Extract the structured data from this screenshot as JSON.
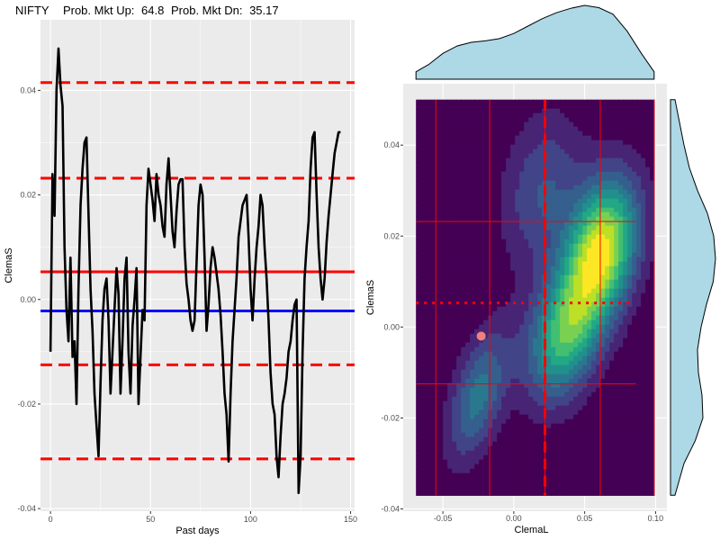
{
  "header": {
    "name": "NIFTY",
    "up_label": "Prob. Mkt Up:",
    "up_value": "64.8",
    "dn_label": "Prob. Mkt Dn:",
    "dn_value": "35.17"
  },
  "colors": {
    "panel_bg": "#ebebeb",
    "grid": "#ffffff",
    "series": "#000000",
    "red": "#ff0000",
    "blue": "#0000ff",
    "marginal_fill": "#add8e6",
    "current_point": "#f08080",
    "density_palette": [
      "#440154",
      "#482475",
      "#414487",
      "#355f8d",
      "#2a788e",
      "#21908d",
      "#22a884",
      "#43bf71",
      "#7ad151",
      "#bddf26",
      "#fde725"
    ]
  },
  "chart_data": [
    {
      "type": "line",
      "panel": "left",
      "title": "",
      "xlabel": "Past days",
      "ylabel": "ClemaS",
      "xlim": [
        -5,
        152
      ],
      "ylim": [
        -0.0405,
        0.0535
      ],
      "x_ticks": [
        0,
        50,
        100,
        150
      ],
      "x_tick_labels": [
        "0",
        "50",
        "100",
        "150"
      ],
      "y_ticks": [
        -0.04,
        -0.02,
        0.0,
        0.02,
        0.04
      ],
      "y_tick_labels": [
        "-0.04",
        "-0.02",
        "0.00",
        "0.02",
        "0.04"
      ],
      "grid": true,
      "x": [
        0,
        1,
        2,
        3,
        4,
        5,
        6,
        7,
        8,
        9,
        10,
        11,
        12,
        13,
        14,
        15,
        16,
        17,
        18,
        19,
        20,
        21,
        22,
        23,
        24,
        25,
        26,
        27,
        28,
        29,
        30,
        31,
        32,
        33,
        34,
        35,
        36,
        37,
        38,
        39,
        40,
        41,
        42,
        43,
        44,
        45,
        46,
        47,
        48,
        49,
        50,
        51,
        52,
        53,
        54,
        55,
        56,
        57,
        58,
        59,
        60,
        61,
        62,
        63,
        64,
        65,
        66,
        67,
        68,
        69,
        70,
        71,
        72,
        73,
        74,
        75,
        76,
        77,
        78,
        79,
        80,
        81,
        82,
        83,
        84,
        85,
        86,
        87,
        88,
        89,
        90,
        91,
        92,
        93,
        94,
        95,
        96,
        97,
        98,
        99,
        100,
        101,
        102,
        103,
        104,
        105,
        106,
        107,
        108,
        109,
        110,
        111,
        112,
        113,
        114,
        115,
        116,
        117,
        118,
        119,
        120,
        121,
        122,
        123,
        124,
        125,
        126,
        127,
        128,
        129,
        130,
        131,
        132,
        133,
        134,
        135,
        136,
        137,
        138,
        139,
        140,
        141,
        142,
        143,
        144,
        145
      ],
      "values": [
        -0.01,
        0.024,
        0.016,
        0.04,
        0.048,
        0.041,
        0.037,
        0.01,
        -0.002,
        -0.008,
        0.008,
        -0.011,
        -0.008,
        -0.02,
        0.002,
        0.018,
        0.025,
        0.03,
        0.031,
        0.016,
        0.002,
        -0.006,
        -0.018,
        -0.024,
        -0.03,
        -0.016,
        -0.004,
        0.002,
        0.004,
        -0.004,
        -0.018,
        -0.01,
        -0.002,
        0.006,
        0.001,
        -0.018,
        -0.008,
        0.004,
        0.008,
        -0.01,
        -0.018,
        -0.005,
        0.0,
        0.006,
        -0.02,
        -0.011,
        -0.002,
        -0.004,
        0.018,
        0.025,
        0.022,
        0.019,
        0.015,
        0.024,
        0.02,
        0.018,
        0.014,
        0.012,
        0.022,
        0.027,
        0.02,
        0.013,
        0.01,
        0.017,
        0.022,
        0.023,
        0.023,
        0.01,
        0.003,
        0.0,
        -0.004,
        -0.006,
        -0.004,
        0.007,
        0.018,
        0.022,
        0.02,
        0.008,
        -0.006,
        -0.001,
        0.006,
        0.01,
        0.008,
        0.005,
        0.002,
        -0.003,
        -0.01,
        -0.018,
        -0.022,
        -0.031,
        -0.018,
        -0.008,
        -0.002,
        0.004,
        0.012,
        0.015,
        0.018,
        0.019,
        0.02,
        0.012,
        0.002,
        -0.004,
        0.004,
        0.01,
        0.014,
        0.02,
        0.018,
        0.01,
        0.004,
        -0.004,
        -0.014,
        -0.02,
        -0.022,
        -0.03,
        -0.034,
        -0.026,
        -0.02,
        -0.018,
        -0.015,
        -0.01,
        -0.008,
        -0.004,
        -0.001,
        0.0,
        -0.037,
        -0.03,
        -0.01,
        0.004,
        0.01,
        0.015,
        0.025,
        0.031,
        0.032,
        0.02,
        0.01,
        0.004,
        0.0,
        0.004,
        0.011,
        0.016,
        0.02,
        0.024,
        0.028,
        0.03,
        0.032,
        0.032
      ],
      "hlines": [
        {
          "y": 0.0415,
          "style": "dashed",
          "color": "red"
        },
        {
          "y": 0.0232,
          "style": "dashed",
          "color": "red"
        },
        {
          "y": 0.0053,
          "style": "solid",
          "color": "red"
        },
        {
          "y": -0.0022,
          "style": "solid",
          "color": "blue"
        },
        {
          "y": -0.0125,
          "style": "dashed",
          "color": "red"
        },
        {
          "y": -0.0305,
          "style": "dashed",
          "color": "red"
        }
      ]
    },
    {
      "type": "heatmap",
      "subtype": "2d-density-contour-with-marginals",
      "panel": "right",
      "xlabel": "ClemaL",
      "ylabel": "ClemaS",
      "xlim": [
        -0.078,
        0.108
      ],
      "ylim": [
        -0.0405,
        0.0535
      ],
      "x_ticks": [
        -0.05,
        0.0,
        0.05,
        0.1
      ],
      "x_tick_labels": [
        "-0.05",
        "0.00",
        "0.05",
        "0.10"
      ],
      "y_ticks": [
        -0.04,
        -0.02,
        0.0,
        0.02,
        0.04
      ],
      "y_tick_labels": [
        "-0.04",
        "-0.02",
        "0.00",
        "0.02",
        "0.04"
      ],
      "density_extent": {
        "x": [
          -0.069,
          0.099
        ],
        "y": [
          -0.037,
          0.05
        ]
      },
      "density_modes": [
        {
          "x": 0.062,
          "y": 0.017,
          "weight": 1.0,
          "sx": 0.018,
          "sy": 0.011,
          "rho": 0.3
        },
        {
          "x": 0.035,
          "y": -0.002,
          "weight": 0.7,
          "sx": 0.018,
          "sy": 0.01,
          "rho": 0.3
        },
        {
          "x": -0.025,
          "y": -0.015,
          "weight": 0.45,
          "sx": 0.015,
          "sy": 0.01,
          "rho": 0.5
        },
        {
          "x": 0.02,
          "y": 0.03,
          "weight": 0.3,
          "sx": 0.02,
          "sy": 0.012,
          "rho": 0.2
        }
      ],
      "vlines": [
        {
          "x": -0.055,
          "style": "solid"
        },
        {
          "x": -0.017,
          "style": "solid"
        },
        {
          "x": 0.022,
          "style": "solid"
        },
        {
          "x": 0.022,
          "style": "dashed"
        },
        {
          "x": 0.061,
          "style": "solid"
        },
        {
          "x": 0.099,
          "style": "solid"
        }
      ],
      "hlines": [
        {
          "y": 0.0232,
          "style": "solid"
        },
        {
          "y": 0.0053,
          "style": "dotted"
        },
        {
          "y": -0.0125,
          "style": "solid"
        }
      ],
      "current_point": {
        "x": -0.023,
        "y": -0.002
      },
      "marginal_x": {
        "x": [
          -0.069,
          -0.06,
          -0.05,
          -0.04,
          -0.03,
          -0.02,
          -0.01,
          0.0,
          0.01,
          0.02,
          0.03,
          0.04,
          0.05,
          0.06,
          0.07,
          0.08,
          0.09,
          0.099
        ],
        "density": [
          0.1,
          0.2,
          0.35,
          0.45,
          0.5,
          0.52,
          0.55,
          0.62,
          0.72,
          0.82,
          0.9,
          0.96,
          1.0,
          0.97,
          0.88,
          0.65,
          0.35,
          0.1
        ]
      },
      "marginal_y": {
        "y": [
          -0.037,
          -0.03,
          -0.025,
          -0.02,
          -0.015,
          -0.01,
          -0.005,
          0.0,
          0.005,
          0.01,
          0.015,
          0.02,
          0.025,
          0.03,
          0.035,
          0.04,
          0.045,
          0.05
        ],
        "density": [
          0.1,
          0.3,
          0.55,
          0.72,
          0.7,
          0.62,
          0.6,
          0.68,
          0.8,
          0.95,
          1.0,
          0.96,
          0.82,
          0.6,
          0.42,
          0.3,
          0.2,
          0.1
        ]
      }
    }
  ]
}
